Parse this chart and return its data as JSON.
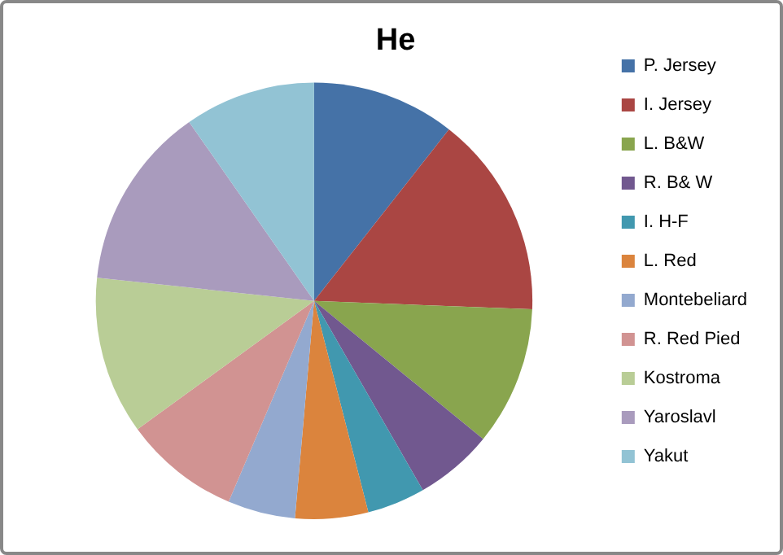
{
  "chart_data": {
    "type": "pie",
    "title": "He",
    "categories": [
      "P. Jersey",
      "I. Jersey",
      "L. B&W",
      "R. B& W",
      "I. H-F",
      "L. Red",
      "Montebeliard",
      "R. Red Pied",
      "Kostroma",
      "Yaroslavl",
      "Yakut"
    ],
    "values": [
      10.6,
      15.0,
      10.3,
      5.8,
      4.3,
      5.4,
      5.0,
      8.6,
      11.7,
      13.6,
      9.7
    ],
    "colors": [
      "#4572a7",
      "#aa4643",
      "#89a54e",
      "#71588f",
      "#4198af",
      "#db843d",
      "#93a9cf",
      "#d19392",
      "#b9cd96",
      "#a99bbd",
      "#92c3d4"
    ],
    "legend": "right"
  }
}
